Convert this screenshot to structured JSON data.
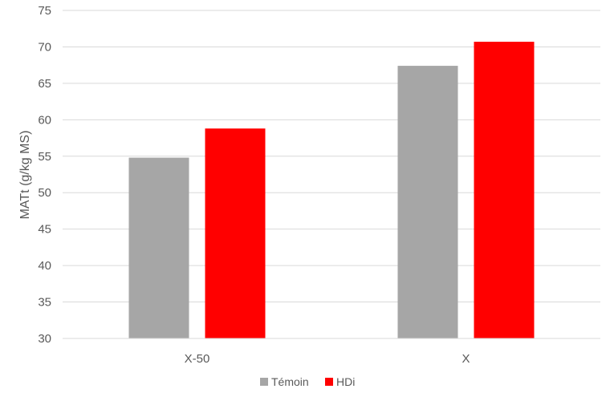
{
  "chart_data": {
    "type": "bar",
    "categories": [
      "X-50",
      "X"
    ],
    "series": [
      {
        "name": "Témoin",
        "color": "#a6a6a6",
        "values": [
          54.8,
          67.4
        ]
      },
      {
        "name": "HDi",
        "color": "#ff0000",
        "values": [
          58.8,
          70.7
        ]
      }
    ],
    "ylabel": "MATt (g/kg MS)",
    "ylim": [
      30,
      75
    ],
    "yticks": [
      "30",
      "35",
      "40",
      "45",
      "50",
      "55",
      "60",
      "65",
      "70",
      "75"
    ],
    "grid": true,
    "legend": "bottom-center"
  }
}
